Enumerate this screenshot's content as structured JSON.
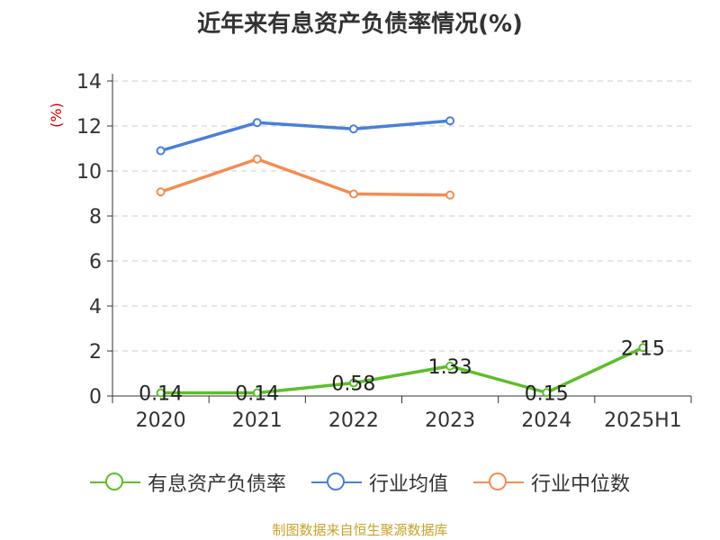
{
  "chart_data": {
    "type": "line",
    "title": "近年来有息资产负债率情况(%)",
    "ylabel": "(%)",
    "ylim": [
      0,
      14
    ],
    "yticks": [
      0,
      2,
      4,
      6,
      8,
      10,
      12,
      14
    ],
    "grid": true,
    "legend_position": "bottom",
    "categories": [
      "2020",
      "2021",
      "2022",
      "2023",
      "2024",
      "2025H1"
    ],
    "series": [
      {
        "name": "有息资产负债率",
        "color": "#5dbe2a",
        "values": [
          0.14,
          0.14,
          0.58,
          1.33,
          0.15,
          2.15
        ],
        "labels": [
          "0.14",
          "0.14",
          "0.58",
          "1.33",
          "0.15",
          "2.15"
        ]
      },
      {
        "name": "行业均值",
        "color": "#4a7fd9",
        "values": [
          10.9,
          12.15,
          11.87,
          12.23,
          null,
          null
        ]
      },
      {
        "name": "行业中位数",
        "color": "#f28c55",
        "values": [
          9.07,
          10.53,
          8.98,
          8.93,
          null,
          null
        ]
      }
    ]
  },
  "footer": {
    "source": "制图数据来自恒生聚源数据库"
  }
}
